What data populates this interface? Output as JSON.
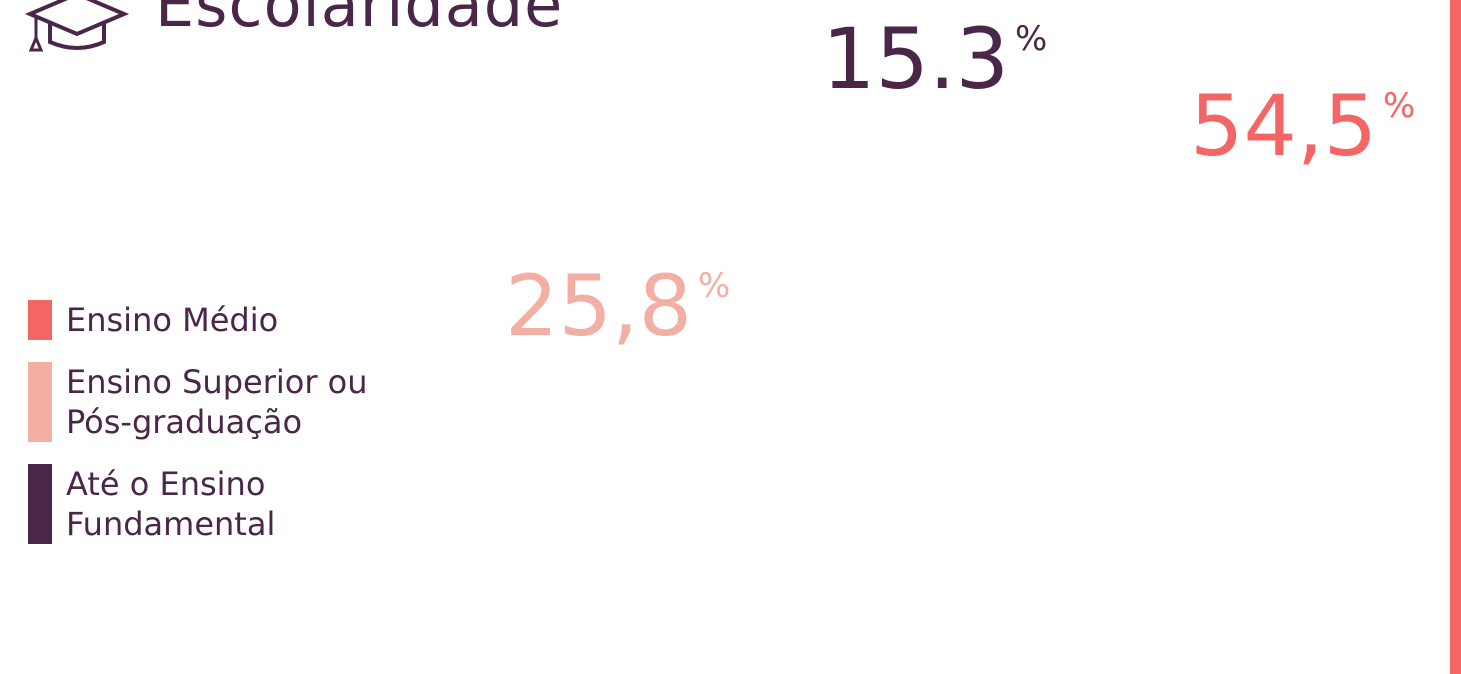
{
  "chart_data": {
    "type": "donut",
    "title": "Escolaridade",
    "categories": [
      "Ensino Médio",
      "Ensino Superior ou Pós-graduação",
      "Até o Ensino Fundamental"
    ],
    "values": [
      54.5,
      25.8,
      15.3
    ],
    "value_labels": [
      "54,5",
      "25,8",
      "15.3"
    ],
    "unit": "%",
    "colors": [
      "#f46565",
      "#f3afa3",
      "#4a2649"
    ]
  }
}
